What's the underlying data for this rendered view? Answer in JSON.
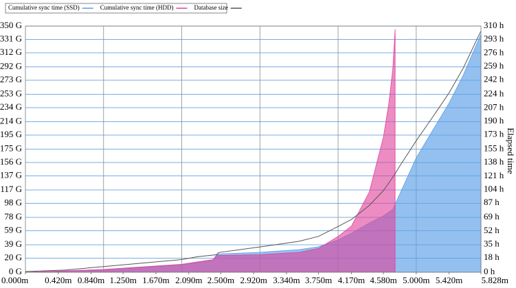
{
  "chart_data": {
    "type": "area",
    "y2label": "Elapsed time",
    "xlim": [
      0,
      5.828
    ],
    "ylim": [
      0,
      350
    ],
    "y2lim": [
      0,
      310
    ],
    "xgrid": [
      1,
      2,
      3,
      4,
      5
    ],
    "ygrid": true,
    "legend": "top",
    "xticks": [
      {
        "value": 0,
        "label": "0.000m"
      },
      {
        "value": 0.42,
        "label": "0.420m"
      },
      {
        "value": 0.84,
        "label": "0.840m"
      },
      {
        "value": 1.25,
        "label": "1.250m"
      },
      {
        "value": 1.67,
        "label": "1.670m"
      },
      {
        "value": 2.09,
        "label": "2.090m"
      },
      {
        "value": 2.5,
        "label": "2.500m"
      },
      {
        "value": 2.92,
        "label": "2.920m"
      },
      {
        "value": 3.34,
        "label": "3.340m"
      },
      {
        "value": 3.75,
        "label": "3.750m"
      },
      {
        "value": 4.17,
        "label": "4.170m"
      },
      {
        "value": 4.58,
        "label": "4.580m"
      },
      {
        "value": 5.0,
        "label": "5.000m"
      },
      {
        "value": 5.42,
        "label": "5.420m"
      },
      {
        "value": 5.828,
        "label": "5.828m"
      }
    ],
    "yticks": [
      {
        "value": 0,
        "label": "0 G"
      },
      {
        "value": 20,
        "label": "20 G"
      },
      {
        "value": 39,
        "label": "39 G"
      },
      {
        "value": 59,
        "label": "59 G"
      },
      {
        "value": 78,
        "label": "78 G"
      },
      {
        "value": 98,
        "label": "98 G"
      },
      {
        "value": 117,
        "label": "117 G"
      },
      {
        "value": 137,
        "label": "137 G"
      },
      {
        "value": 156,
        "label": "156 G"
      },
      {
        "value": 175,
        "label": "175 G"
      },
      {
        "value": 195,
        "label": "195 G"
      },
      {
        "value": 214,
        "label": "214 G"
      },
      {
        "value": 234,
        "label": "234 G"
      },
      {
        "value": 253,
        "label": "253 G"
      },
      {
        "value": 273,
        "label": "273 G"
      },
      {
        "value": 292,
        "label": "292 G"
      },
      {
        "value": 312,
        "label": "312 G"
      },
      {
        "value": 331,
        "label": "331 G"
      },
      {
        "value": 350,
        "label": "350 G"
      }
    ],
    "y2ticks": [
      {
        "value": 0,
        "label": "0 h"
      },
      {
        "value": 18,
        "label": "18 h"
      },
      {
        "value": 35,
        "label": "35 h"
      },
      {
        "value": 52,
        "label": "52 h"
      },
      {
        "value": 69,
        "label": "69 h"
      },
      {
        "value": 87,
        "label": "87 h"
      },
      {
        "value": 104,
        "label": "104 h"
      },
      {
        "value": 121,
        "label": "121 h"
      },
      {
        "value": 138,
        "label": "138 h"
      },
      {
        "value": 155,
        "label": "155 h"
      },
      {
        "value": 173,
        "label": "173 h"
      },
      {
        "value": 190,
        "label": "190 h"
      },
      {
        "value": 207,
        "label": "207 h"
      },
      {
        "value": 224,
        "label": "224 h"
      },
      {
        "value": 242,
        "label": "242 h"
      },
      {
        "value": 259,
        "label": "259 h"
      },
      {
        "value": 276,
        "label": "276 h"
      },
      {
        "value": 293,
        "label": "293 h"
      },
      {
        "value": 310,
        "label": "310 h"
      }
    ],
    "series": [
      {
        "name": "Cumulative sync time (SSD)",
        "color": "#5a9ee6",
        "axis": "y2",
        "kind": "area",
        "x": [
          0,
          1,
          2,
          2.4,
          2.45,
          3,
          3.5,
          3.75,
          4.0,
          4.17,
          4.4,
          4.58,
          4.7,
          4.8,
          5.0,
          5.2,
          5.42,
          5.6,
          5.828
        ],
        "values": [
          0,
          2.6,
          9.5,
          15,
          23,
          25,
          28.5,
          32,
          40.6,
          49,
          62,
          71,
          79,
          101,
          144,
          177,
          213,
          248,
          300
        ]
      },
      {
        "name": "Cumulative sync time (HDD)",
        "color": "#e0409a",
        "axis": "y2",
        "kind": "area",
        "x": [
          0,
          1,
          2,
          2.4,
          2.45,
          3,
          3.5,
          3.75,
          4.0,
          4.17,
          4.4,
          4.58,
          4.65,
          4.7,
          4.73
        ],
        "values": [
          0,
          3.5,
          10,
          16,
          21,
          22,
          25,
          30,
          45,
          58,
          101,
          170,
          213,
          256,
          306
        ]
      },
      {
        "name": "Database size",
        "color": "#555555",
        "axis": "y",
        "kind": "line",
        "x": [
          0,
          0.5,
          1,
          2,
          2.2,
          2.45,
          2.47,
          3,
          3.5,
          3.75,
          4.0,
          4.17,
          4.4,
          4.58,
          4.7,
          4.8,
          5.0,
          5.2,
          5.42,
          5.6,
          5.828
        ],
        "values": [
          1,
          3,
          8,
          18,
          22,
          25,
          28,
          36,
          44,
          51,
          65,
          75,
          95,
          116,
          135,
          153,
          187,
          219,
          255,
          290,
          343
        ]
      }
    ]
  }
}
